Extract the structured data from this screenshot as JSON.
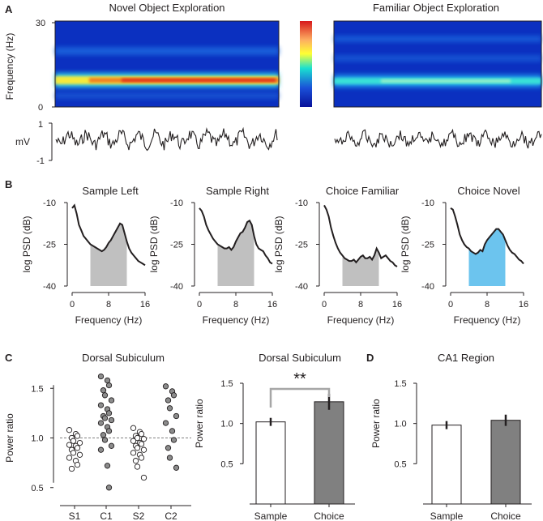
{
  "colors": {
    "ink": "#231f20",
    "spectro_bg": "#0a33c8",
    "band_novel_core": "#e0301e",
    "band_familiar_core": "#38e0d8",
    "grey_fill": "#c0c0c0",
    "blue_fill": "#6cc4ee",
    "bar_sample": "#ffffff",
    "bar_choice": "#808080",
    "dot_open": "#ffffff",
    "dot_filled": "#8c8c8c",
    "bracket": "#a6a6a6"
  },
  "panelA": {
    "letter": "A",
    "title_novel": "Novel Object Exploration",
    "title_familiar": "Familiar Object Exploration",
    "freq_ylabel": "Frequency (Hz)",
    "freq_ticks": [
      "30",
      "0"
    ],
    "mv_label": "mV",
    "mv_ticks": [
      "1",
      "-1"
    ],
    "colorbar_stops": [
      "#d7191c",
      "#fdae61",
      "#ffff33",
      "#1ae0d0",
      "#1a50d8",
      "#08119a"
    ]
  },
  "panelB": {
    "letter": "B",
    "ylabel": "log PSD (dB)",
    "xlabel": "Frequency (Hz)",
    "y_ticks": [
      "-10",
      "-25",
      "-40"
    ],
    "x_ticks": [
      "0",
      "8",
      "16"
    ],
    "chart_data": [
      {
        "type": "area",
        "title": "Sample Left",
        "fill": "grey",
        "x": [
          0,
          0.5,
          1,
          1.5,
          2,
          2.5,
          3,
          3.5,
          4,
          4.5,
          5,
          5.5,
          6,
          6.5,
          7,
          7.5,
          8,
          8.5,
          9,
          9.5,
          10,
          10.5,
          11,
          11.5,
          12,
          12.5,
          13,
          13.5,
          14,
          14.5,
          15,
          15.5,
          16
        ],
        "y": [
          -12,
          -11,
          -14,
          -18,
          -20,
          -22,
          -23,
          -24,
          -25,
          -25.5,
          -26,
          -26.5,
          -27,
          -27.5,
          -27,
          -26,
          -24.5,
          -23.5,
          -22,
          -20.5,
          -19,
          -17.5,
          -18,
          -21,
          -24,
          -26.5,
          -28,
          -29,
          -30,
          -31,
          -31.5,
          -32,
          -32.5
        ],
        "band": [
          4,
          12
        ],
        "xlim": [
          0,
          16
        ],
        "ylim": [
          -40,
          -10
        ]
      },
      {
        "type": "area",
        "title": "Sample Right",
        "fill": "grey",
        "x": [
          0,
          0.5,
          1,
          1.5,
          2,
          2.5,
          3,
          3.5,
          4,
          4.5,
          5,
          5.5,
          6,
          6.5,
          7,
          7.5,
          8,
          8.5,
          9,
          9.5,
          10,
          10.5,
          11,
          11.5,
          12,
          12.5,
          13,
          13.5,
          14,
          14.5,
          15,
          15.5,
          16
        ],
        "y": [
          -12,
          -13,
          -15,
          -18,
          -20,
          -21.5,
          -23,
          -24,
          -25,
          -25.5,
          -26,
          -26.5,
          -26.5,
          -26,
          -27,
          -26,
          -24,
          -22.5,
          -21,
          -20.5,
          -19,
          -17,
          -16.5,
          -18,
          -22,
          -25,
          -26.5,
          -27,
          -27.5,
          -29,
          -30,
          -31.5,
          -32
        ],
        "band": [
          4,
          12
        ],
        "xlim": [
          0,
          16
        ],
        "ylim": [
          -40,
          -10
        ]
      },
      {
        "type": "area",
        "title": "Choice Familiar",
        "fill": "grey",
        "x": [
          0,
          0.5,
          1,
          1.5,
          2,
          2.5,
          3,
          3.5,
          4,
          4.5,
          5,
          5.5,
          6,
          6.5,
          7,
          7.5,
          8,
          8.5,
          9,
          9.5,
          10,
          10.5,
          11,
          11.5,
          12,
          12.5,
          13,
          13.5,
          14,
          14.5,
          15,
          15.5,
          16
        ],
        "y": [
          -11,
          -12.5,
          -15,
          -19,
          -22,
          -24.5,
          -26.5,
          -28,
          -29,
          -30,
          -30.5,
          -31,
          -31,
          -30.5,
          -31.5,
          -30.5,
          -29.5,
          -29,
          -30,
          -30,
          -29.5,
          -30.5,
          -29,
          -26.5,
          -28,
          -30,
          -29.5,
          -29,
          -30,
          -31,
          -31.5,
          -32.5,
          -33
        ],
        "band": [
          4,
          12
        ],
        "xlim": [
          0,
          16
        ],
        "ylim": [
          -40,
          -10
        ]
      },
      {
        "type": "area",
        "title": "Choice Novel",
        "fill": "blue",
        "x": [
          0,
          0.5,
          1,
          1.5,
          2,
          2.5,
          3,
          3.5,
          4,
          4.5,
          5,
          5.5,
          6,
          6.5,
          7,
          7.5,
          8,
          8.5,
          9,
          9.5,
          10,
          10.5,
          11,
          11.5,
          12,
          12.5,
          13,
          13.5,
          14,
          14.5,
          15,
          15.5,
          16
        ],
        "y": [
          -12,
          -12.5,
          -15,
          -18,
          -21.5,
          -23.5,
          -25,
          -26,
          -26.5,
          -27.5,
          -28,
          -28.5,
          -28,
          -27,
          -27.5,
          -25,
          -23.5,
          -22.5,
          -21.5,
          -20.5,
          -19.5,
          -19.5,
          -20.5,
          -21.5,
          -23.5,
          -25.5,
          -27,
          -28,
          -28.5,
          -29.5,
          -30.5,
          -31,
          -32
        ],
        "band": [
          4,
          12
        ],
        "xlim": [
          0,
          16
        ],
        "ylim": [
          -40,
          -10
        ]
      }
    ]
  },
  "panelC": {
    "letter": "C",
    "title_left": "Dorsal Subiculum",
    "title_right": "Dorsal Subiculum",
    "ylabel": "Power ratio",
    "y_ticks": [
      "1.5",
      "1.0",
      "0.5"
    ],
    "significance": "**",
    "chart_data": [
      {
        "type": "scatter",
        "title": "Dorsal Subiculum",
        "ylabel": "Power ratio",
        "ylim": [
          0.4,
          1.6
        ],
        "reference_line": 1.0,
        "categories": [
          "S1",
          "C1",
          "S2",
          "C2"
        ],
        "series": [
          {
            "name": "S1",
            "marker": "open",
            "values": [
              1.08,
              1.04,
              1.02,
              1.0,
              0.97,
              0.95,
              0.93,
              0.92,
              0.9,
              0.88,
              0.85,
              0.83,
              0.8,
              0.77,
              0.73,
              0.69
            ]
          },
          {
            "name": "C1",
            "marker": "filled",
            "values": [
              1.62,
              1.58,
              1.53,
              1.48,
              1.43,
              1.38,
              1.33,
              1.29,
              1.25,
              1.22,
              1.2,
              1.18,
              1.15,
              1.11,
              1.07,
              1.03,
              0.98,
              0.92,
              0.88,
              0.72,
              0.5
            ]
          },
          {
            "name": "S2",
            "marker": "open",
            "values": [
              1.1,
              1.06,
              1.04,
              1.02,
              1.0,
              0.99,
              0.97,
              0.95,
              0.94,
              0.92,
              0.9,
              0.88,
              0.85,
              0.83,
              0.8,
              0.77,
              0.71,
              0.6
            ]
          },
          {
            "name": "C2",
            "marker": "filled",
            "values": [
              1.52,
              1.47,
              1.43,
              1.38,
              1.3,
              1.22,
              1.15,
              1.07,
              0.98,
              0.9,
              0.8,
              0.7
            ]
          }
        ]
      },
      {
        "type": "bar",
        "title": "Dorsal Subiculum",
        "ylabel": "Power ratio",
        "ylim": [
          0,
          1.5
        ],
        "categories": [
          "Sample",
          "Choice"
        ],
        "values": [
          1.02,
          1.27
        ],
        "errors": [
          0.05,
          0.1
        ],
        "annotation": "**"
      }
    ]
  },
  "panelD": {
    "letter": "D",
    "title": "CA1 Region",
    "ylabel": "Power ratio",
    "y_ticks": [
      "1.5",
      "1.0",
      "0.5"
    ],
    "chart_data": {
      "type": "bar",
      "title": "CA1 Region",
      "ylabel": "Power ratio",
      "ylim": [
        0,
        1.5
      ],
      "categories": [
        "Sample",
        "Choice"
      ],
      "values": [
        0.98,
        1.04
      ],
      "errors": [
        0.05,
        0.07
      ]
    }
  }
}
